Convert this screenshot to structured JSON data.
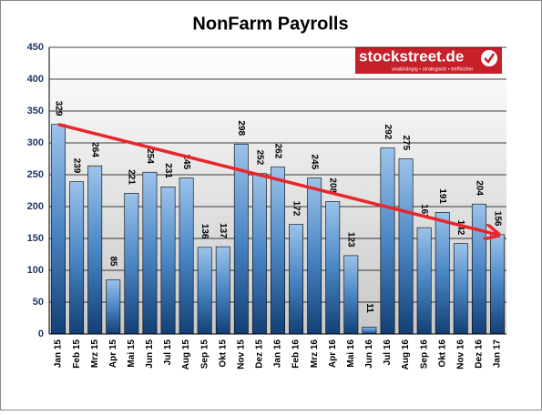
{
  "chart_data": {
    "type": "bar",
    "title": "NonFarm Payrolls",
    "logo": {
      "name": "stockstreet.de",
      "tagline": "unabhängig • strategisch • treffsicher"
    },
    "categories": [
      "Jan 15",
      "Feb 15",
      "Mrz 15",
      "Apr 15",
      "Mai 15",
      "Jun 15",
      "Jul 15",
      "Aug 15",
      "Sep 15",
      "Okt 15",
      "Nov 15",
      "Dez 15",
      "Jan 16",
      "Feb 16",
      "Mrz 16",
      "Apr 16",
      "Mai 16",
      "Jun 16",
      "Jul 16",
      "Aug 16",
      "Sep 16",
      "Okt 16",
      "Nov 16",
      "Dez 16",
      "Jan 17"
    ],
    "values": [
      329,
      239,
      264,
      85,
      221,
      254,
      231,
      245,
      136,
      137,
      298,
      252,
      262,
      172,
      245,
      208,
      123,
      11,
      292,
      275,
      167,
      191,
      142,
      204,
      156
    ],
    "color": "#2e6fb0",
    "ylim": [
      0,
      450
    ],
    "yticks": [
      0,
      50,
      100,
      150,
      200,
      250,
      300,
      350,
      400,
      450
    ],
    "grid": true,
    "trend_color": "#e8262b"
  }
}
